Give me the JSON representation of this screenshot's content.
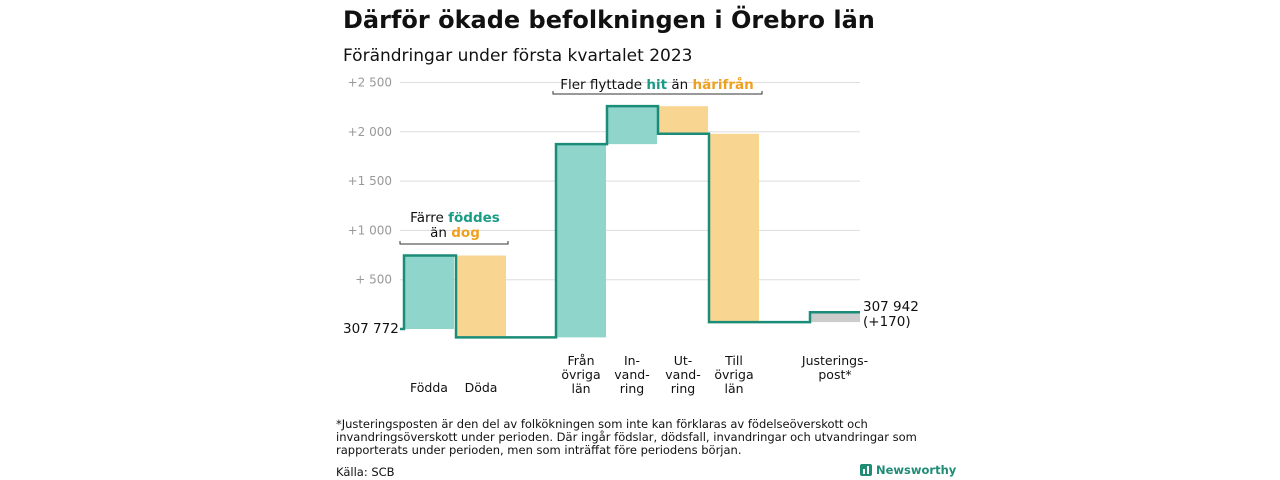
{
  "header": {
    "title": "Därför ökade befolkningen i Örebro län",
    "subtitle": "Förändringar under första kvartalet 2023"
  },
  "colors": {
    "teal": "#8fd5cb",
    "orange": "#f9d592",
    "gray": "#cccccc",
    "line": "#1a8c78",
    "grid": "#dddddd",
    "tick": "#999999",
    "accentTeal": "#1a9c84",
    "accentOrange": "#f0a020"
  },
  "chart_data": {
    "type": "waterfall",
    "start_label": "307 772",
    "end_label": [
      "307 942",
      "(+170)"
    ],
    "yticks": [
      {
        "value": 500,
        "label": "+ 500"
      },
      {
        "value": 1000,
        "label": "+1 000"
      },
      {
        "value": 1500,
        "label": "+1 500"
      },
      {
        "value": 2000,
        "label": "+2 000"
      },
      {
        "value": 2500,
        "label": "+2 500"
      }
    ],
    "ylim": [
      -100,
      2600
    ],
    "steps": [
      {
        "label": [
          "Födda"
        ],
        "value": 745,
        "from": 0,
        "to": 745,
        "color": "teal"
      },
      {
        "label": [
          "Döda"
        ],
        "value": -830,
        "from": 745,
        "to": -85,
        "color": "orange"
      },
      {
        "label": [
          "Från",
          "övriga",
          "län"
        ],
        "value": 1960,
        "from": -85,
        "to": 1875,
        "color": "teal"
      },
      {
        "label": [
          "In-",
          "vand-",
          "ring"
        ],
        "value": 385,
        "from": 1875,
        "to": 2260,
        "color": "teal"
      },
      {
        "label": [
          "Ut-",
          "vand-",
          "ring"
        ],
        "value": -280,
        "from": 2260,
        "to": 1980,
        "color": "orange"
      },
      {
        "label": [
          "Till",
          "övriga",
          "län"
        ],
        "value": -1910,
        "from": 1980,
        "to": 70,
        "color": "orange"
      },
      {
        "label": [
          "Justerings-",
          "post*"
        ],
        "value": 100,
        "from": 70,
        "to": 170,
        "color": "gray"
      }
    ],
    "annotations": [
      {
        "parts": [
          {
            "text": "Färre ",
            "style": "plain"
          },
          {
            "text": "föddes",
            "style": "teal"
          }
        ],
        "parts2": [
          {
            "text": "än ",
            "style": "plain"
          },
          {
            "text": "dog",
            "style": "orange"
          }
        ]
      },
      {
        "parts": [
          {
            "text": "Fler flyttade ",
            "style": "plain"
          },
          {
            "text": "hit",
            "style": "teal"
          },
          {
            "text": " än ",
            "style": "plain"
          },
          {
            "text": "härifrån",
            "style": "orange"
          }
        ]
      }
    ]
  },
  "footer": {
    "footnote": "*Justeringsposten är den del av folkökningen som inte kan förklaras av födelseöverskott och invandringsöverskott under perioden. Där ingår födslar, dödsfall, invandringar och utvandringar som rapporterats under perioden, men som inträffat före periodens början.",
    "source": "Källa: SCB",
    "brand": "Newsworthy"
  }
}
